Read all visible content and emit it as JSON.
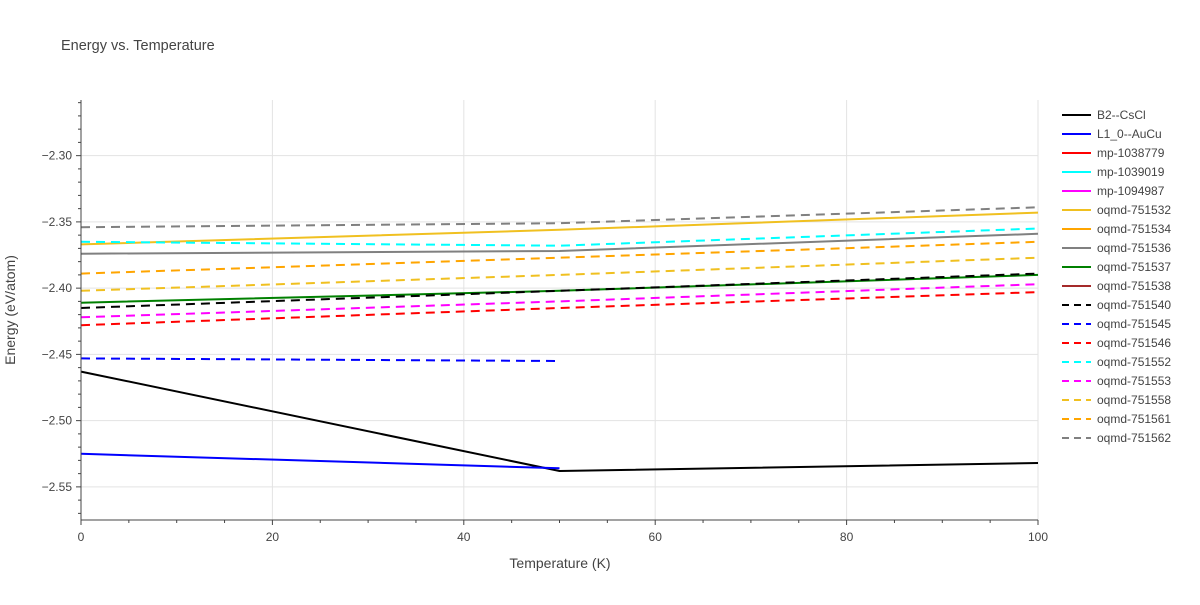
{
  "chart_data": {
    "type": "line",
    "title": "Energy vs. Temperature",
    "xlabel": "Temperature (K)",
    "ylabel": "Energy (eV/atom)",
    "xlim": [
      0,
      100
    ],
    "ylim": [
      -2.575,
      -2.258
    ],
    "x_ticks": [
      0,
      20,
      40,
      60,
      80,
      100
    ],
    "y_ticks": [
      -2.55,
      -2.5,
      -2.45,
      -2.4,
      -2.35,
      -2.3
    ],
    "grid": true,
    "legend_position": "right",
    "series": [
      {
        "name": "B2--CsCl",
        "color": "#000000",
        "dash": "solid",
        "x": [
          0,
          50,
          100
        ],
        "y": [
          -2.463,
          -2.538,
          -2.532
        ]
      },
      {
        "name": "L1_0--AuCu",
        "color": "#0000ff",
        "dash": "solid",
        "x": [
          0,
          50
        ],
        "y": [
          -2.525,
          -2.536
        ]
      },
      {
        "name": "mp-1038779",
        "color": "#ff0000",
        "dash": "solid",
        "x": [],
        "y": []
      },
      {
        "name": "mp-1039019",
        "color": "#00ffff",
        "dash": "solid",
        "x": [],
        "y": []
      },
      {
        "name": "mp-1094987",
        "color": "#ff00ff",
        "dash": "solid",
        "x": [],
        "y": []
      },
      {
        "name": "oqmd-751532",
        "color": "#f0c020",
        "dash": "solid",
        "x": [
          0,
          50,
          100
        ],
        "y": [
          -2.367,
          -2.356,
          -2.343
        ]
      },
      {
        "name": "oqmd-751534",
        "color": "#ffa500",
        "dash": "solid",
        "x": [],
        "y": []
      },
      {
        "name": "oqmd-751536",
        "color": "#808080",
        "dash": "solid",
        "x": [
          0,
          50,
          100
        ],
        "y": [
          -2.374,
          -2.372,
          -2.359
        ]
      },
      {
        "name": "oqmd-751537",
        "color": "#008000",
        "dash": "solid",
        "x": [
          0,
          50,
          100
        ],
        "y": [
          -2.411,
          -2.402,
          -2.39
        ]
      },
      {
        "name": "oqmd-751538",
        "color": "#a52a2a",
        "dash": "solid",
        "x": [],
        "y": []
      },
      {
        "name": "oqmd-751540",
        "color": "#000000",
        "dash": "dash",
        "x": [
          0,
          50,
          100
        ],
        "y": [
          -2.415,
          -2.402,
          -2.389
        ]
      },
      {
        "name": "oqmd-751545",
        "color": "#0000ff",
        "dash": "dash",
        "x": [
          0,
          50
        ],
        "y": [
          -2.453,
          -2.455
        ]
      },
      {
        "name": "oqmd-751546",
        "color": "#ff0000",
        "dash": "dash",
        "x": [
          0,
          50,
          100
        ],
        "y": [
          -2.428,
          -2.415,
          -2.403
        ]
      },
      {
        "name": "oqmd-751552",
        "color": "#00ffff",
        "dash": "dash",
        "x": [
          0,
          50,
          100
        ],
        "y": [
          -2.365,
          -2.368,
          -2.355
        ]
      },
      {
        "name": "oqmd-751553",
        "color": "#ff00ff",
        "dash": "dash",
        "x": [
          0,
          50,
          100
        ],
        "y": [
          -2.422,
          -2.41,
          -2.397
        ]
      },
      {
        "name": "oqmd-751558",
        "color": "#f0c020",
        "dash": "dash",
        "x": [
          0,
          50,
          100
        ],
        "y": [
          -2.402,
          -2.39,
          -2.377
        ]
      },
      {
        "name": "oqmd-751561",
        "color": "#ffa500",
        "dash": "dash",
        "x": [
          0,
          50,
          100
        ],
        "y": [
          -2.389,
          -2.377,
          -2.365
        ]
      },
      {
        "name": "oqmd-751562",
        "color": "#808080",
        "dash": "dash",
        "x": [
          0,
          50,
          100
        ],
        "y": [
          -2.354,
          -2.351,
          -2.339
        ]
      }
    ]
  }
}
